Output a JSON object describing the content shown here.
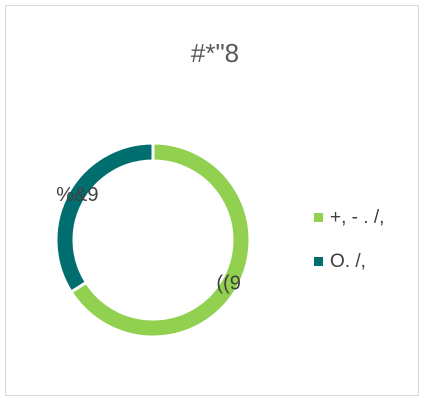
{
  "chart_data": {
    "type": "pie",
    "title": "#*\"8",
    "categories": [
      "+, - . /,",
      "O. /,"
    ],
    "values": [
      66,
      34
    ],
    "value_labels": [
      "((9",
      "%&9"
    ],
    "colors": [
      "#92d050",
      "#006e6e"
    ],
    "legend": "right"
  }
}
